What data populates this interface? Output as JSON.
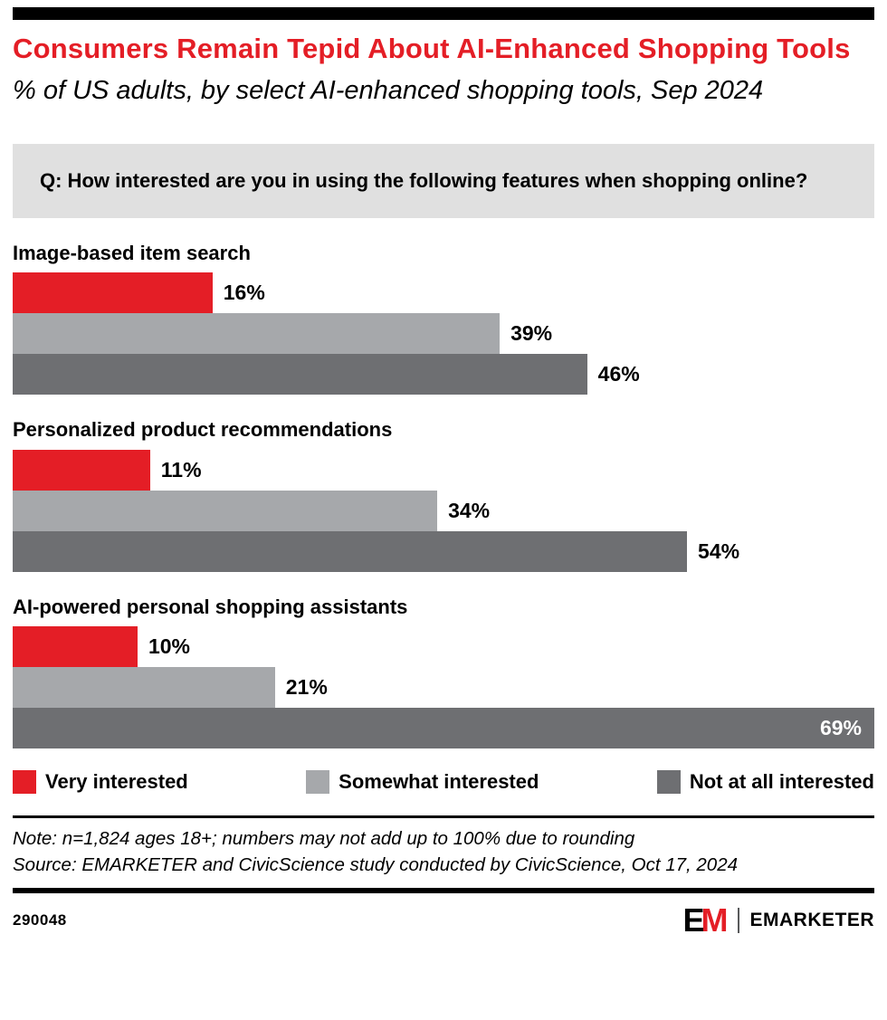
{
  "header": {
    "title": "Consumers Remain Tepid About AI-Enhanced Shopping Tools",
    "subtitle": "% of US adults, by select AI-enhanced shopping tools, Sep 2024"
  },
  "question": "Q: How interested are you in using the following features when shopping online?",
  "chart_data": {
    "type": "bar",
    "orientation": "horizontal",
    "title": "Consumers Remain Tepid About AI-Enhanced Shopping Tools",
    "subtitle": "% of US adults, by select AI-enhanced shopping tools, Sep 2024",
    "categories": [
      "Image-based item search",
      "Personalized product recommendations",
      "AI-powered personal shopping assistants"
    ],
    "series": [
      {
        "name": "Very interested",
        "color": "#e41e26",
        "values": [
          16,
          11,
          10
        ]
      },
      {
        "name": "Somewhat interested",
        "color": "#a6a8ab",
        "values": [
          39,
          34,
          21
        ]
      },
      {
        "name": "Not at all interested",
        "color": "#6e6f72",
        "values": [
          46,
          54,
          69
        ]
      }
    ],
    "value_suffix": "%",
    "scale_max": 69,
    "grid": false,
    "legend_position": "bottom"
  },
  "notes": {
    "note": "Note: n=1,824 ages 18+; numbers may not add up to 100% due to rounding",
    "source": "Source: EMARKETER and CivicScience study conducted by CivicScience, Oct 17, 2024"
  },
  "footer": {
    "chart_id": "290048",
    "logo_e": "E",
    "logo_m": "M",
    "brand": "EMARKETER"
  },
  "colors": {
    "accent_red": "#e41e26",
    "bar_gray": "#a6a8ab",
    "bar_dark_gray": "#6e6f72",
    "question_box_bg": "#e0e0e0",
    "rule_black": "#000000"
  }
}
